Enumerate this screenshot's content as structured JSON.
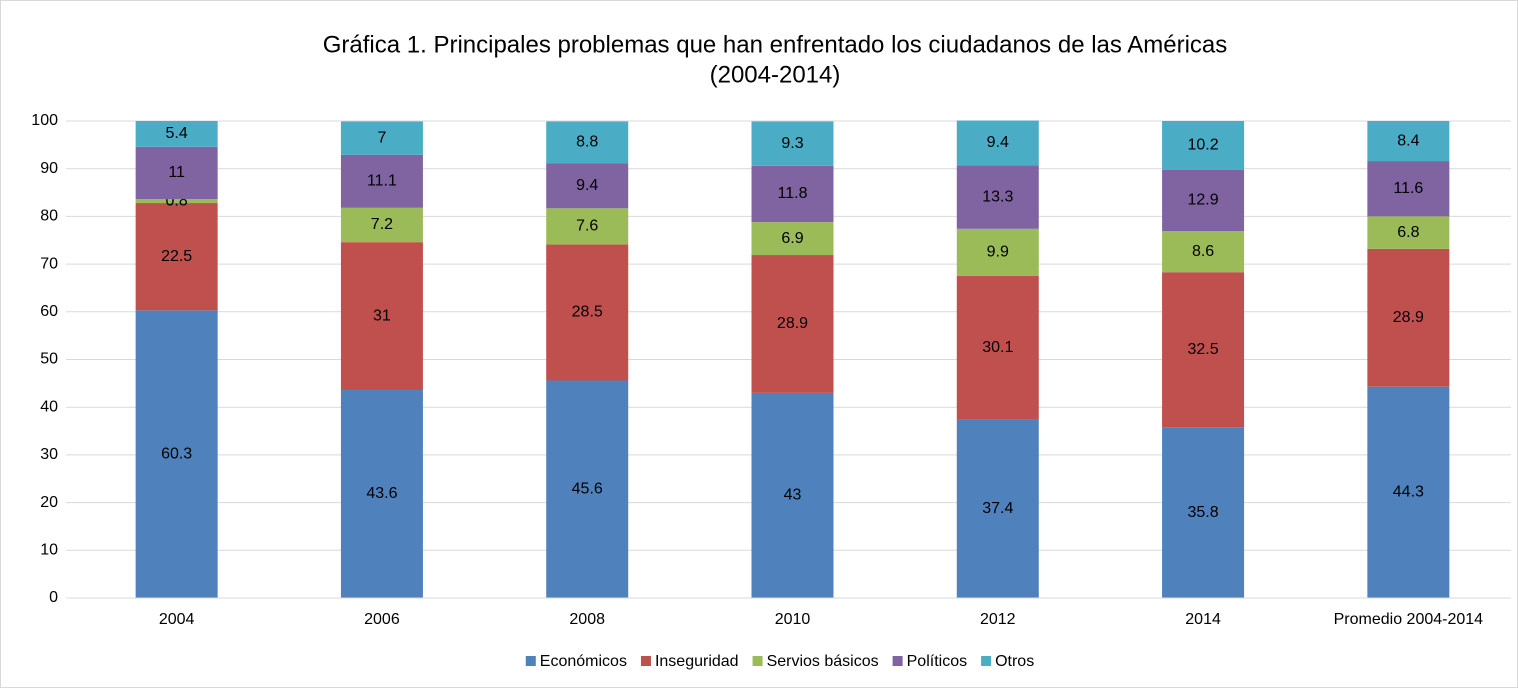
{
  "chart_data": {
    "type": "stacked_bar",
    "title": [
      "Gráfica 1.  Principales problemas que han enfrentado los ciudadanos de las Américas",
      "(2004-2014)"
    ],
    "categories": [
      "2004",
      "2006",
      "2008",
      "2010",
      "2012",
      "2014",
      "Promedio 2004-2014"
    ],
    "series": [
      {
        "name": "Económicos",
        "color": "#4f81bd",
        "values": [
          60.3,
          43.6,
          45.6,
          43,
          37.4,
          35.8,
          44.3
        ]
      },
      {
        "name": "Inseguridad",
        "color": "#c0504d",
        "values": [
          22.5,
          31,
          28.5,
          28.9,
          30.1,
          32.5,
          28.9
        ]
      },
      {
        "name": "Servios básicos",
        "color": "#9bbb59",
        "values": [
          0.8,
          7.2,
          7.6,
          6.9,
          9.9,
          8.6,
          6.8
        ]
      },
      {
        "name": "Políticos",
        "color": "#8064a2",
        "values": [
          11,
          11.1,
          9.4,
          11.8,
          13.3,
          12.9,
          11.6
        ]
      },
      {
        "name": "Otros",
        "color": "#4bacc6",
        "values": [
          5.4,
          7,
          8.8,
          9.3,
          9.4,
          10.2,
          8.4
        ]
      }
    ],
    "ylim": [
      0,
      100
    ],
    "yticks": [
      0,
      10,
      20,
      30,
      40,
      50,
      60,
      70,
      80,
      90,
      100
    ],
    "grid": true,
    "legend": "bottom"
  }
}
